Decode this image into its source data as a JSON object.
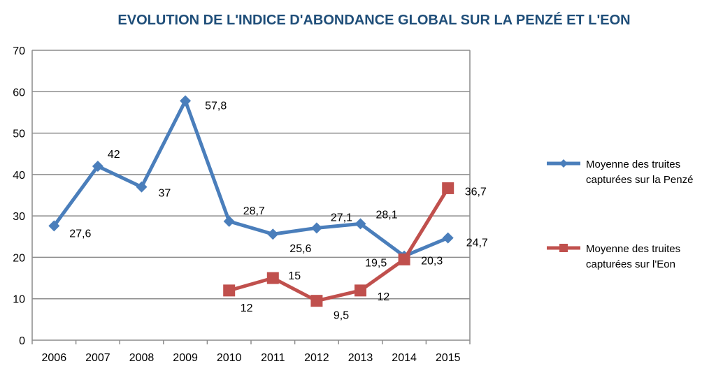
{
  "chart_data": {
    "type": "line",
    "title": "EVOLUTION DE L'INDICE D'ABONDANCE GLOBAL SUR LA PENZÉ ET L'EON",
    "categories": [
      "2006",
      "2007",
      "2008",
      "2009",
      "2010",
      "2011",
      "2012",
      "2013",
      "2014",
      "2015"
    ],
    "ylim": [
      0,
      70
    ],
    "yticks": [
      "0",
      "10",
      "20",
      "30",
      "40",
      "50",
      "60",
      "70"
    ],
    "grid": true,
    "legend_position": "right",
    "series": [
      {
        "legend_lines": [
          "Moyenne des truites",
          "capturées sur la Penzé"
        ],
        "color": "#4a7ebb",
        "marker": "diamond",
        "values": [
          27.6,
          42,
          37,
          57.8,
          28.7,
          25.6,
          27.1,
          28.1,
          20.3,
          24.7
        ],
        "labels": [
          "27,6",
          "42",
          "37",
          "57,8",
          "28,7",
          "25,6",
          "27,1",
          "28,1",
          "20,3",
          "24,7"
        ]
      },
      {
        "legend_lines": [
          "Moyenne des truites",
          "capturées sur l'Eon"
        ],
        "color": "#c0504d",
        "marker": "square",
        "values": [
          null,
          null,
          null,
          null,
          12,
          15,
          9.5,
          12,
          19.5,
          36.7
        ],
        "labels": [
          "",
          "",
          "",
          "",
          "12",
          "15",
          "9,5",
          "12",
          "19,5",
          "36,7"
        ]
      }
    ]
  }
}
